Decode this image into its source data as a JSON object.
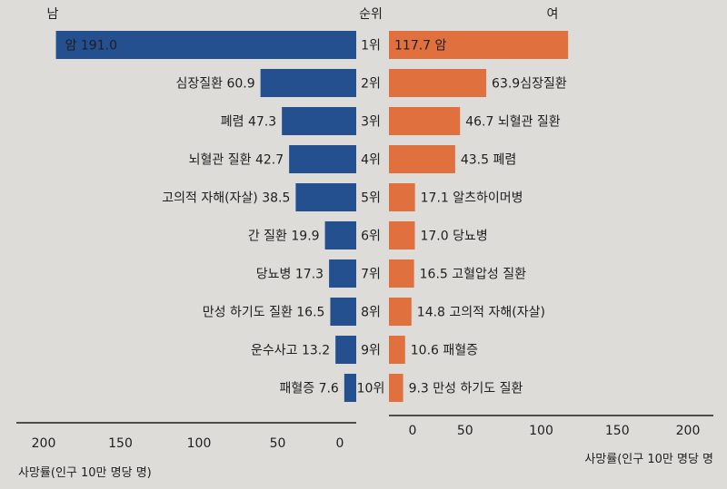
{
  "chart_data": {
    "type": "bar",
    "layout": "population-pyramid",
    "headers": {
      "left": "남",
      "center": "순위",
      "right": "여"
    },
    "ranks": [
      "1위",
      "2위",
      "3위",
      "4위",
      "5위",
      "6위",
      "7위",
      "8위",
      "9위",
      "10위"
    ],
    "series": [
      {
        "name": "남",
        "color": "#25508f",
        "categories": [
          "암",
          "심장질환",
          "폐렴",
          "뇌혈관 질환",
          "고의적 자해(자살)",
          "간 질환",
          "당뇨병",
          "만성 하기도 질환",
          "운수사고",
          "패혈증"
        ],
        "values": [
          191.0,
          60.9,
          47.3,
          42.7,
          38.5,
          19.9,
          17.3,
          16.5,
          13.2,
          7.6
        ]
      },
      {
        "name": "여",
        "color": "#e0703e",
        "categories": [
          "암",
          "심장질환",
          "뇌혈관 질환",
          "폐렴",
          "알츠하이머병",
          "당뇨병",
          "고혈압성 질환",
          "고의적 자해(자살)",
          "패혈증",
          "만성 하기도 질환"
        ],
        "values": [
          117.7,
          63.9,
          46.7,
          43.5,
          17.1,
          17.0,
          16.5,
          14.8,
          10.6,
          9.3
        ]
      }
    ],
    "left_axis": {
      "ticks": [
        "200",
        "150",
        "100",
        "50",
        "0"
      ],
      "range": [
        0,
        200
      ],
      "label": "사망률(인구 10만 명당 명)"
    },
    "right_axis": {
      "ticks": [
        "0",
        "50",
        "100",
        "150",
        "200"
      ],
      "range": [
        0,
        200
      ],
      "label": "사망률(인구 10만 명당 명"
    }
  }
}
